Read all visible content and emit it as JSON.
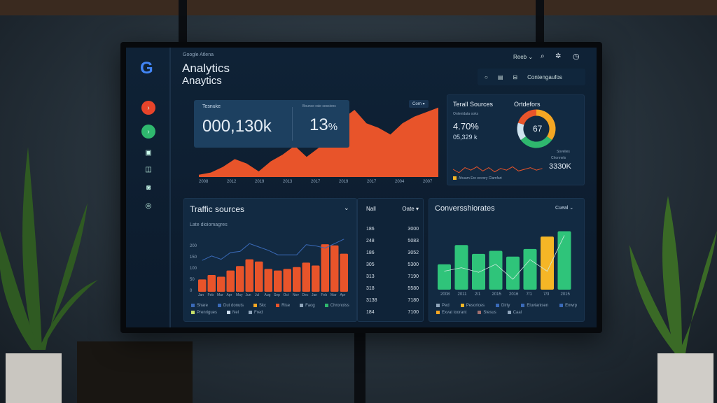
{
  "app": {
    "brand": "Google Atlena",
    "title_line1": "Analytics",
    "title_line2": "Anaytics"
  },
  "topbar": {
    "user_menu": "Reeb",
    "search_icon": "search-icon",
    "settings_icon": "gear-icon",
    "help_icon": "clock-icon",
    "toolbar_label": "Contengaufos"
  },
  "sidebar": {
    "items": [
      "analytics-red",
      "analytics-green",
      "lock",
      "folder",
      "camera",
      "globe"
    ]
  },
  "summary": {
    "label": "Tesnuke",
    "value": "000,130k",
    "sub_label": "Bounce rate sessions",
    "percent": "13",
    "percent_unit": "%",
    "range": "Corn",
    "x_ticks": [
      "2008",
      "2012",
      "2019",
      "2013",
      "2017",
      "2019",
      "2017",
      "2004",
      "2007"
    ],
    "area_values": [
      2,
      4,
      9,
      16,
      12,
      5,
      14,
      20,
      28,
      18,
      26,
      40,
      52,
      60,
      48,
      44,
      38,
      48,
      54,
      58,
      62
    ]
  },
  "total_sources": {
    "title": "Terall Sources",
    "subtitle": "Ortdefors",
    "caption": "Onlenidata ooks",
    "value1": "4.70%",
    "value2": "05,329 k",
    "donut_value": "67",
    "side_label": "Sovelies",
    "side_sub": "Chonnels",
    "side_value": "3330K",
    "legend": "Ahuam  Ere  worory Clamfart",
    "donut": [
      {
        "value": 35,
        "color": "#f5a623"
      },
      {
        "value": 30,
        "color": "#2fb86e"
      },
      {
        "value": 15,
        "color": "#cfe3ef"
      },
      {
        "value": 20,
        "color": "#e8542a"
      }
    ],
    "spark": [
      5,
      9,
      3,
      6,
      2,
      7,
      3,
      8,
      4,
      6,
      2,
      7,
      5,
      3,
      6,
      4
    ]
  },
  "traffic": {
    "title": "Traffic sources",
    "subtitle": "Late dioiomagres",
    "y_ticks": [
      "200",
      "150",
      "100",
      "50",
      "0"
    ],
    "x_ticks": [
      "Jan",
      "Feb",
      "Mar",
      "Apr",
      "May",
      "Jun",
      "Jul",
      "Aug",
      "Sep",
      "Oct",
      "Nov",
      "Dec",
      "Jan",
      "Feb",
      "Mar",
      "Apr"
    ],
    "bars": [
      55,
      75,
      67,
      95,
      115,
      145,
      135,
      102,
      95,
      102,
      110,
      130,
      117,
      212,
      207,
      170
    ],
    "line": [
      140,
      160,
      145,
      175,
      180,
      215,
      200,
      185,
      165,
      165,
      165,
      210,
      205,
      195,
      215,
      235
    ],
    "legend": [
      "Share",
      "Dut donuts",
      "Skc",
      "Rise",
      "Faog",
      "Chronoiss",
      "Prenrigues",
      "Nel",
      "Fred"
    ]
  },
  "table": {
    "headers": [
      "Nall",
      "Oate"
    ],
    "rows": [
      [
        "186",
        "3000"
      ],
      [
        "248",
        "5083"
      ],
      [
        "186",
        "3052"
      ],
      [
        "305",
        "5300"
      ],
      [
        "313",
        "7190"
      ],
      [
        "318",
        "5580"
      ],
      [
        "3138",
        "7180"
      ],
      [
        "184",
        "7100"
      ]
    ]
  },
  "conversions": {
    "title": "Conversshiorates",
    "filter": "Cueal",
    "x_ticks": [
      "2008",
      "2011",
      "2/1",
      "2015",
      "2016",
      "7/1",
      "7/3",
      "2015"
    ],
    "bars": [
      110,
      193,
      155,
      168,
      143,
      176,
      230,
      253
    ],
    "highlight_index": 6,
    "line": [
      80,
      95,
      75,
      110,
      45,
      130,
      80,
      235
    ],
    "legend": [
      "Ped",
      "Pesorices",
      "Dirty",
      "Eluvianisen",
      "Enwrp",
      "Exvat toorant",
      "Stesus",
      "Caal"
    ]
  },
  "colors": {
    "orange": "#e8542a",
    "green": "#2fc47a",
    "yellow": "#f5b626",
    "blue_line": "#3a6ab8",
    "panel": "#122a42"
  }
}
